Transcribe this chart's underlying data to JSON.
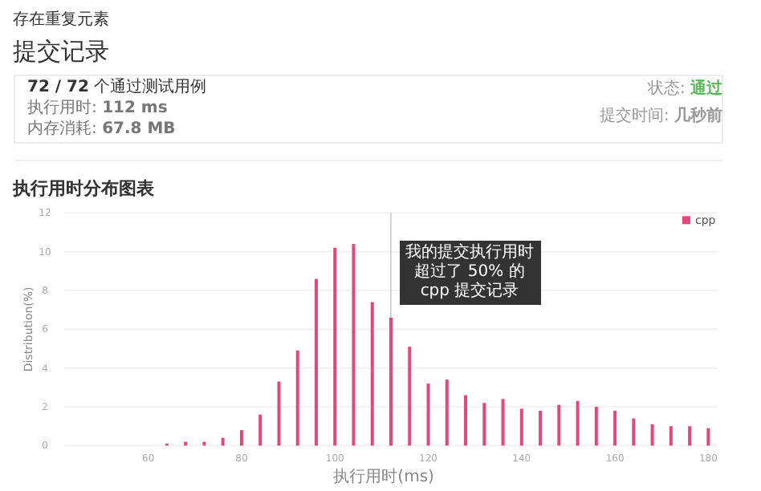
{
  "chart_data": {
    "type": "bar",
    "title": "执行用时分布图表",
    "xlabel": "执行用时(ms)",
    "ylabel": "Distribution(%)",
    "x": [
      64,
      68,
      72,
      76,
      80,
      84,
      88,
      92,
      96,
      100,
      104,
      108,
      112,
      116,
      120,
      124,
      128,
      132,
      136,
      140,
      144,
      148,
      152,
      156,
      160,
      164,
      168,
      172,
      176,
      180
    ],
    "series": [
      {
        "name": "cpp",
        "color": "#e4477c",
        "values": [
          0.1,
          0.2,
          0.2,
          0.4,
          0.8,
          1.6,
          3.3,
          4.9,
          8.6,
          10.2,
          10.4,
          7.4,
          6.6,
          5.1,
          3.2,
          3.4,
          2.6,
          2.2,
          2.4,
          1.9,
          1.8,
          2.1,
          2.3,
          2.0,
          1.8,
          1.4,
          1.1,
          1.0,
          1.0,
          0.9
        ]
      }
    ],
    "xlim": [
      42,
      182
    ],
    "xticks": [
      60,
      80,
      100,
      120,
      140,
      160,
      180
    ],
    "ylim": [
      0,
      12
    ],
    "yticks": [
      0,
      2,
      4,
      6,
      8,
      10,
      12
    ],
    "grid": "y",
    "legend": "top right",
    "ref_lines": [
      {
        "axis": "x",
        "value": 112,
        "label": "我的提交执行用时超过了 50% 的 cpp 提交记录",
        "color": "#bbbbbb"
      }
    ],
    "annotations": [
      "存在重复元素",
      "提交记录",
      "**72 / 72** 个通过测试用例",
      "执行用时: **112 ms**",
      "内存消耗: **67.8 MB**",
      "状态: **通过**",
      "提交时间: **几秒前**"
    ]
  }
}
